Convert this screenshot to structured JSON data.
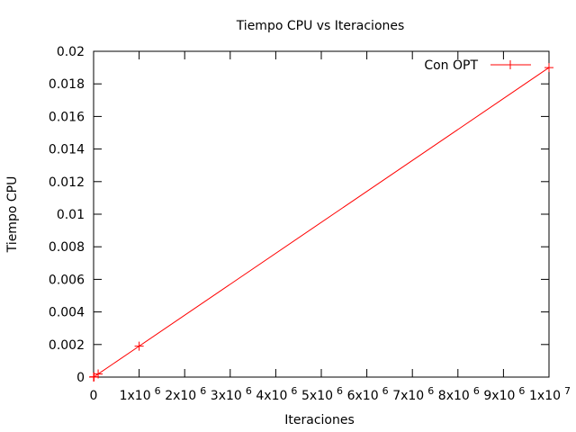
{
  "chart_data": {
    "type": "line",
    "title": "Tiempo CPU vs Iteraciones",
    "xlabel": "Iteraciones",
    "ylabel": "Tiempo CPU",
    "xlim": [
      0,
      10000000
    ],
    "ylim": [
      0,
      0.02
    ],
    "x_ticks": [
      {
        "value": 0,
        "label": "0",
        "exp": ""
      },
      {
        "value": 1000000,
        "label": "1x10",
        "exp": "6"
      },
      {
        "value": 2000000,
        "label": "2x10",
        "exp": "6"
      },
      {
        "value": 3000000,
        "label": "3x10",
        "exp": "6"
      },
      {
        "value": 4000000,
        "label": "4x10",
        "exp": "6"
      },
      {
        "value": 5000000,
        "label": "5x10",
        "exp": "6"
      },
      {
        "value": 6000000,
        "label": "6x10",
        "exp": "6"
      },
      {
        "value": 7000000,
        "label": "7x10",
        "exp": "6"
      },
      {
        "value": 8000000,
        "label": "8x10",
        "exp": "6"
      },
      {
        "value": 9000000,
        "label": "9x10",
        "exp": "6"
      },
      {
        "value": 10000000,
        "label": "1x10",
        "exp": "7"
      }
    ],
    "y_ticks": [
      {
        "value": 0,
        "label": "0"
      },
      {
        "value": 0.002,
        "label": "0.002"
      },
      {
        "value": 0.004,
        "label": "0.004"
      },
      {
        "value": 0.006,
        "label": "0.006"
      },
      {
        "value": 0.008,
        "label": "0.008"
      },
      {
        "value": 0.01,
        "label": "0.01"
      },
      {
        "value": 0.012,
        "label": "0.012"
      },
      {
        "value": 0.014,
        "label": "0.014"
      },
      {
        "value": 0.016,
        "label": "0.016"
      },
      {
        "value": 0.018,
        "label": "0.018"
      },
      {
        "value": 0.02,
        "label": "0.02"
      }
    ],
    "grid": false,
    "legend_position": "top-right",
    "series": [
      {
        "name": "Con OPT",
        "color": "#ff0000",
        "marker": "plus",
        "x": [
          0,
          10,
          100,
          1000,
          10000,
          100000,
          1000000,
          10000000
        ],
        "y": [
          0,
          0,
          0,
          0,
          2e-05,
          0.00019,
          0.0019,
          0.019
        ]
      }
    ]
  }
}
